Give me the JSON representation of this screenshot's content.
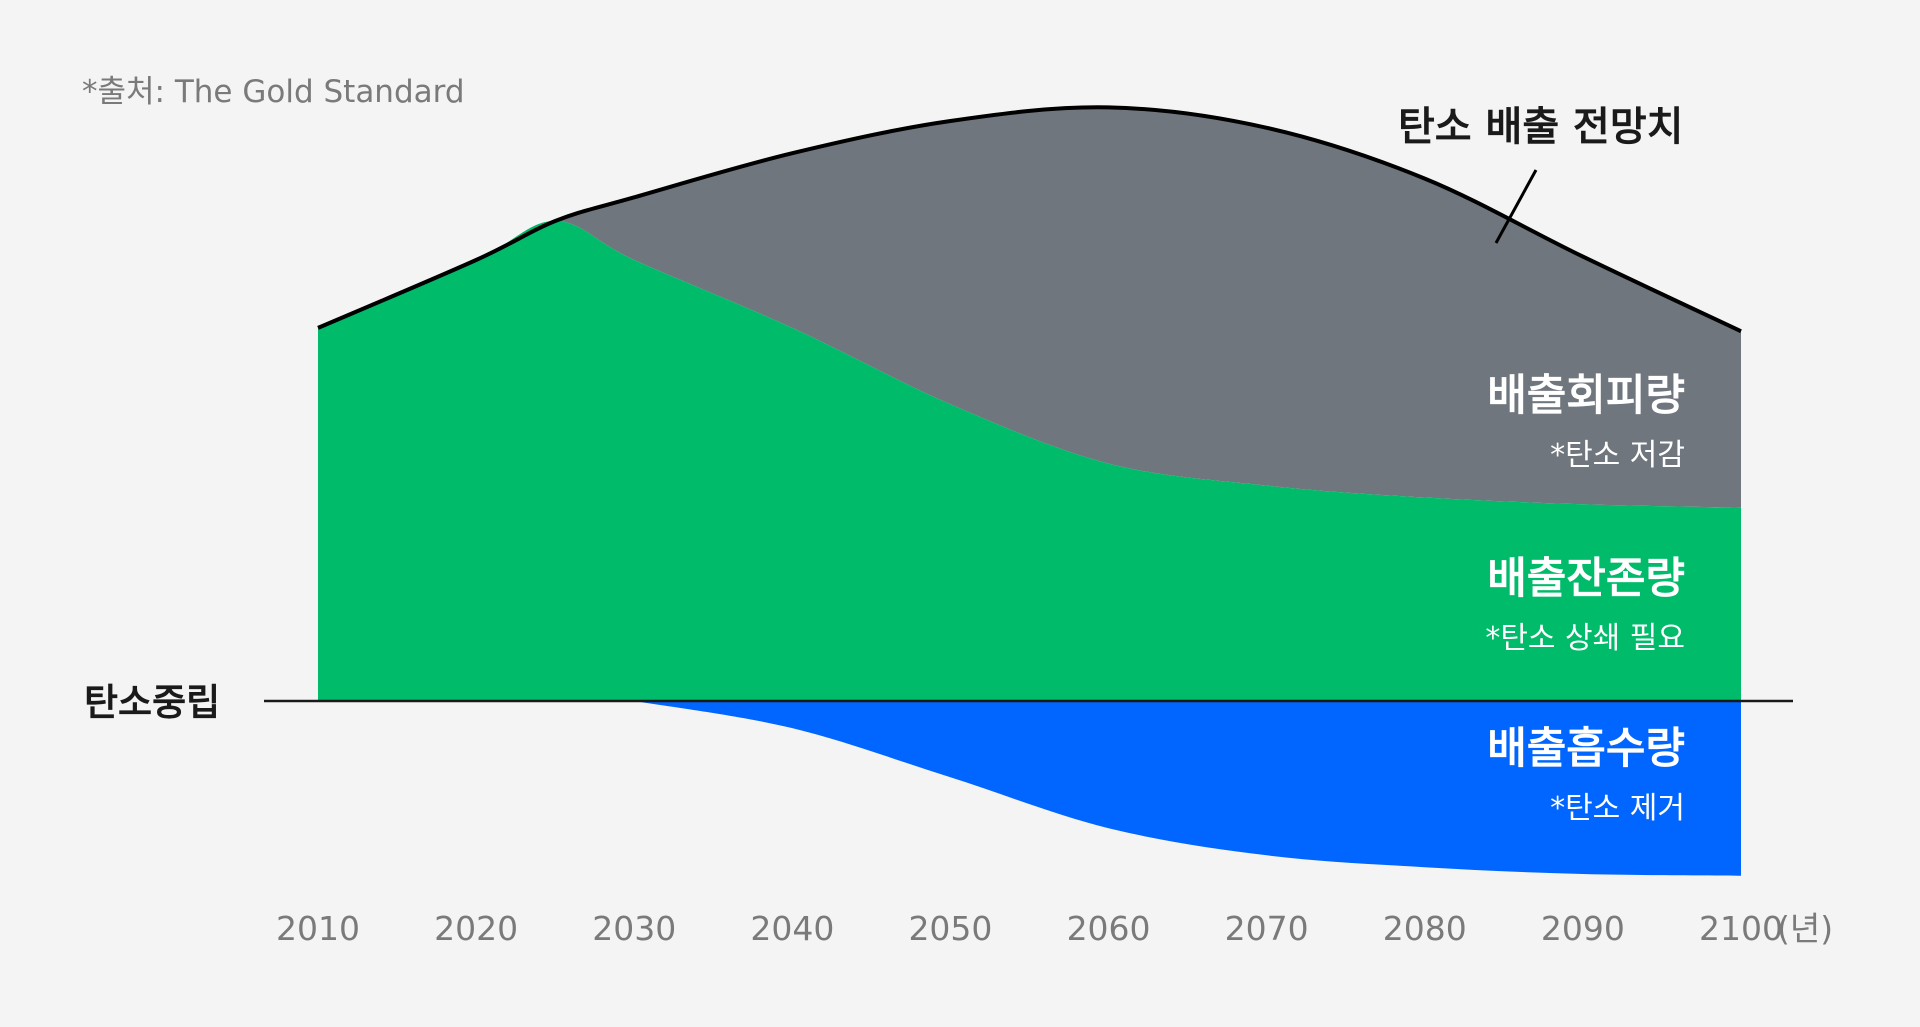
{
  "source_note": "*출처: The Gold Standard",
  "chart_data": {
    "type": "area",
    "title": "",
    "xlabel": "",
    "ylabel": "",
    "x_unit": "(년)",
    "x": [
      2010,
      2020,
      2030,
      2040,
      2050,
      2060,
      2070,
      2080,
      2090,
      2100
    ],
    "tick_labels": [
      "2010",
      "2020",
      "2030",
      "2040",
      "2050",
      "2060",
      "2070",
      "2080",
      "2090",
      "2100"
    ],
    "xlim": [
      2010,
      2100
    ],
    "ylim": [
      -1.0,
      3.6
    ],
    "y_ticks_shown": false,
    "grid": false,
    "baseline_label": "탄소중립",
    "series": [
      {
        "name": "탄소 배출 전망치",
        "kind": "line",
        "color": "#000000",
        "points": [
          [
            2010,
            2.2
          ],
          [
            2020,
            2.6
          ],
          [
            2025,
            2.83
          ],
          [
            2030,
            2.97
          ],
          [
            2040,
            3.23
          ],
          [
            2050,
            3.42
          ],
          [
            2060,
            3.5
          ],
          [
            2070,
            3.38
          ],
          [
            2080,
            3.08
          ],
          [
            2090,
            2.62
          ],
          [
            2100,
            2.18
          ]
        ]
      },
      {
        "name": "배출회피량",
        "subtitle": "*탄소 저감",
        "kind": "area",
        "color": "#6f767d",
        "upper": [
          [
            2010,
            2.2
          ],
          [
            2020,
            2.6
          ],
          [
            2025,
            2.83
          ],
          [
            2030,
            2.97
          ],
          [
            2040,
            3.23
          ],
          [
            2050,
            3.42
          ],
          [
            2060,
            3.5
          ],
          [
            2070,
            3.38
          ],
          [
            2080,
            3.08
          ],
          [
            2090,
            2.62
          ],
          [
            2100,
            2.18
          ]
        ],
        "lower": [
          [
            2010,
            2.2
          ],
          [
            2020,
            2.6
          ],
          [
            2025,
            2.83
          ],
          [
            2030,
            2.6
          ],
          [
            2040,
            2.2
          ],
          [
            2050,
            1.75
          ],
          [
            2060,
            1.4
          ],
          [
            2070,
            1.27
          ],
          [
            2080,
            1.2
          ],
          [
            2090,
            1.16
          ],
          [
            2100,
            1.14
          ]
        ]
      },
      {
        "name": "배출잔존량",
        "subtitle": "*탄소 상쇄 필요",
        "kind": "area",
        "color": "#00bb6a",
        "upper": [
          [
            2010,
            2.2
          ],
          [
            2020,
            2.6
          ],
          [
            2025,
            2.83
          ],
          [
            2030,
            2.6
          ],
          [
            2040,
            2.2
          ],
          [
            2050,
            1.75
          ],
          [
            2060,
            1.4
          ],
          [
            2070,
            1.27
          ],
          [
            2080,
            1.2
          ],
          [
            2090,
            1.16
          ],
          [
            2100,
            1.14
          ]
        ],
        "lower": [
          [
            2010,
            0
          ],
          [
            2100,
            0
          ]
        ]
      },
      {
        "name": "배출흡수량",
        "subtitle": "*탄소 제거",
        "kind": "area",
        "color": "#0066ff",
        "upper": [
          [
            2030,
            0
          ],
          [
            2100,
            0
          ]
        ],
        "lower": [
          [
            2030,
            0
          ],
          [
            2040,
            -0.16
          ],
          [
            2050,
            -0.45
          ],
          [
            2060,
            -0.75
          ],
          [
            2070,
            -0.91
          ],
          [
            2080,
            -0.98
          ],
          [
            2090,
            -1.02
          ],
          [
            2100,
            -1.03
          ]
        ]
      }
    ]
  },
  "colors": {
    "background": "#f4f4f4",
    "avoided": "#6f767d",
    "residual": "#00bb6a",
    "removal": "#0066ff",
    "line": "#000000",
    "tick_text": "#7a7a7a"
  }
}
